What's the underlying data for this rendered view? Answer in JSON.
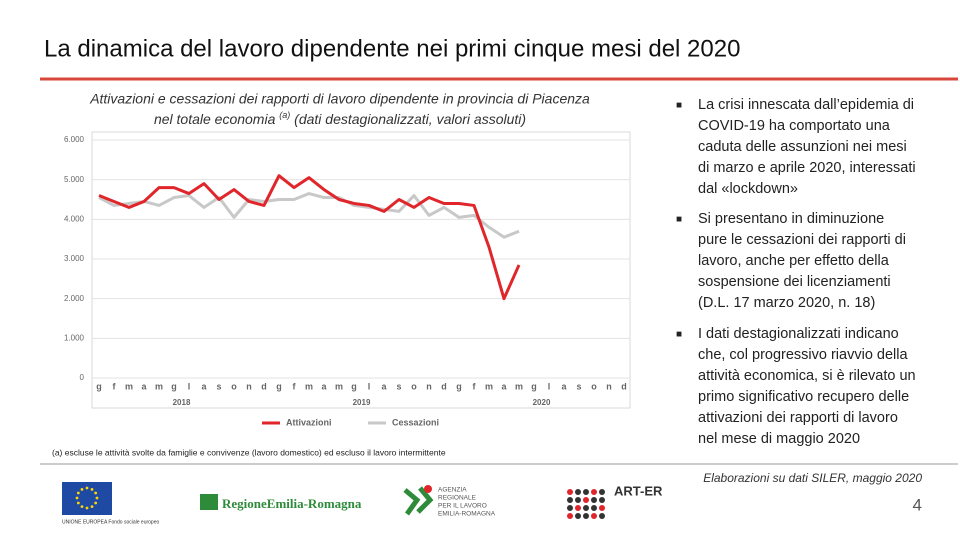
{
  "title": "La dinamica del lavoro dipendente nei primi cinque mesi del 2020",
  "chart_data": {
    "type": "line",
    "subtitle": {
      "line1": "Attivazioni e cessazioni dei rapporti di lavoro dipendente in provincia di Piacenza",
      "line2_start": "nel totale economia",
      "sup": "(a)",
      "line2_end": "(dati destagionalizzati, valori assoluti)"
    },
    "categories": [
      "g",
      "f",
      "m",
      "a",
      "m",
      "g",
      "l",
      "a",
      "s",
      "o",
      "n",
      "d",
      "g",
      "f",
      "m",
      "a",
      "m",
      "g",
      "l",
      "a",
      "s",
      "o",
      "n",
      "d",
      "g",
      "f",
      "m",
      "a",
      "m",
      "g",
      "l",
      "a",
      "s",
      "o",
      "n",
      "d"
    ],
    "year_labels": [
      "2018",
      "2019",
      "2020"
    ],
    "series": [
      {
        "name": "Attivazioni",
        "color": "#e0262b",
        "values": [
          4600,
          4450,
          4300,
          4450,
          4800,
          4800,
          4650,
          4900,
          4500,
          4750,
          4450,
          4350,
          5100,
          4800,
          5050,
          4750,
          4500,
          4400,
          4350,
          4200,
          4500,
          4300,
          4550,
          4400,
          4400,
          4350,
          3300,
          2000,
          2850,
          null,
          null,
          null,
          null,
          null,
          null,
          null
        ]
      },
      {
        "name": "Cessazioni",
        "color": "#c8c8c8",
        "values": [
          4550,
          4350,
          4400,
          4450,
          4350,
          4550,
          4600,
          4300,
          4550,
          4050,
          4500,
          4450,
          4500,
          4500,
          4650,
          4550,
          4550,
          4350,
          4300,
          4250,
          4200,
          4600,
          4100,
          4300,
          4050,
          4100,
          3800,
          3550,
          3700,
          null,
          null,
          null,
          null,
          null,
          null,
          null
        ]
      }
    ],
    "ylim": [
      0,
      6000
    ],
    "yticks": [
      0,
      {
        "value": 1000,
        "label": "1.000"
      },
      {
        "value": 2000,
        "label": "2.000"
      },
      {
        "value": 3000,
        "label": "3.000"
      },
      {
        "value": 4000,
        "label": "4.000"
      },
      {
        "value": 5000,
        "label": "5.000"
      },
      {
        "value": 6000,
        "label": "6.000"
      }
    ],
    "grid": true,
    "legend": "bottom",
    "footnote": "(a) escluse le attività svolte da famiglie e convivenze (lavoro domestico) ed escluso il lavoro intermittente"
  },
  "bullets": [
    "La crisi innescata dall’epidemia di COVID-19 ha comportato una caduta delle assunzioni nei mesi di marzo e aprile 2020, interessati dal «lockdown»",
    "Si presentano in diminuzione pure le cessazioni dei rapporti di lavoro, anche per effetto della sospensione dei licenziamenti (D.L. 17 marzo 2020, n. 18)",
    "I dati destagionalizzati indicano che, col progressivo riavvio della attività economica, si è rilevato un primo significativo recupero delle attivazioni dei rapporti di lavoro nel mese di maggio 2020"
  ],
  "source": "Elaborazioni su dati SILER, maggio 2020",
  "page_number": "4",
  "logos": {
    "eu": "UNIONE EUROPEA Fondo sociale europeo",
    "region": "RegioneEmilia-Romagna",
    "agency": [
      "AGENZIA",
      "REGIONALE",
      "PER IL LAVORO",
      "EMILIA-ROMAGNA"
    ],
    "arter": "ART-ER"
  }
}
